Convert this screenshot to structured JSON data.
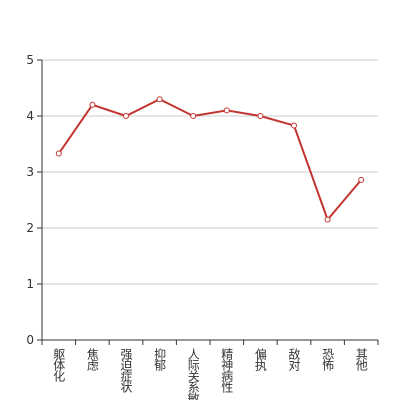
{
  "chart_data": {
    "type": "line",
    "categories": [
      "躯体化",
      "焦虑",
      "强迫症状",
      "抑郁",
      "人际关系敏感",
      "精神病性",
      "偏执",
      "敌对",
      "恐怖",
      "其他"
    ],
    "series": [
      {
        "color": "#c23531",
        "values": [
          3.33,
          4.2,
          4.0,
          4.3,
          4.0,
          4.1,
          4.0,
          3.83,
          2.15,
          2.86
        ]
      }
    ],
    "ylim": [
      0,
      5
    ],
    "yticks": [
      0,
      1,
      2,
      3,
      4,
      5
    ],
    "grid": true
  }
}
